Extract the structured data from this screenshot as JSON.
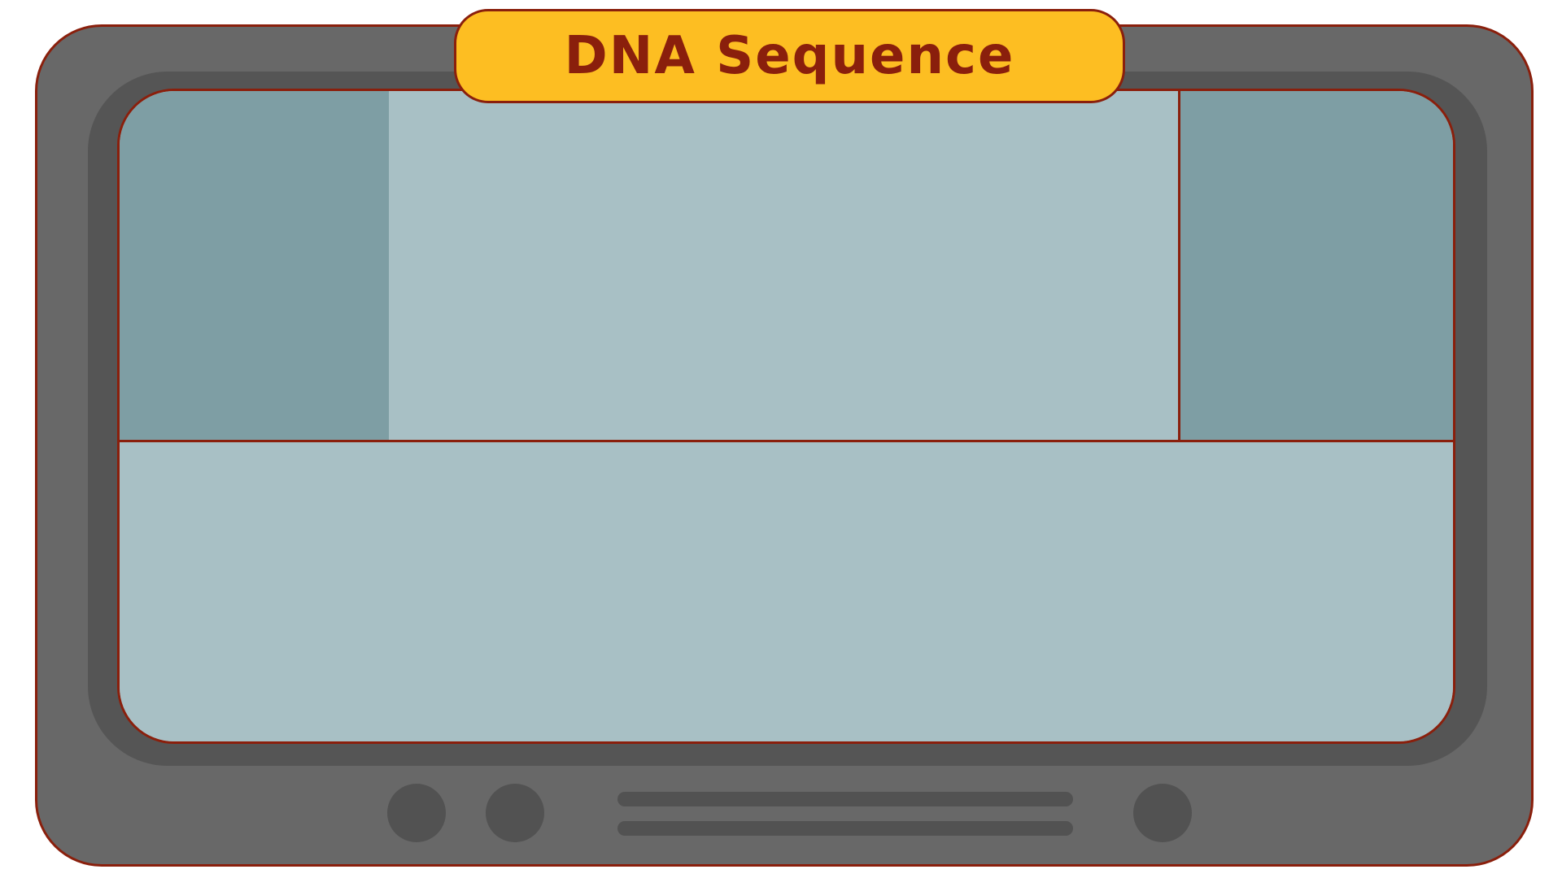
{
  "game": {
    "title": "DNA Sequence"
  },
  "colors": {
    "device_body": "#686868",
    "bezel": "#555555",
    "outline": "#8a1f0c",
    "screen_light": "#a8c0c5",
    "screen_dark": "#7e9ea4",
    "banner": "#fdbe22",
    "title_text": "#8a1f0c",
    "knob": "#525252"
  },
  "icons": {
    "knobs": [
      "knob",
      "knob",
      "knob"
    ],
    "vents": [
      "speaker-grille",
      "speaker-grille"
    ]
  }
}
